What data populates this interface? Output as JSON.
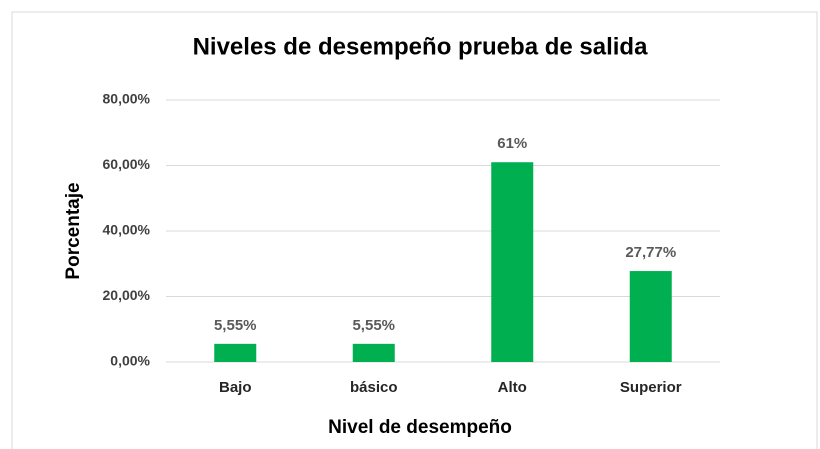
{
  "chart_data": {
    "type": "bar",
    "title": "Niveles de desempeño prueba de salida",
    "x_label": "Nivel de desempeño",
    "y_label": "Porcentaje",
    "categories": [
      "Bajo",
      "básico",
      "Alto",
      "Superior"
    ],
    "values": [
      5.55,
      5.55,
      61,
      27.77
    ],
    "value_labels": [
      "5,55%",
      "5,55%",
      "61%",
      "27,77%"
    ],
    "color": "#00b050",
    "ylim": [
      0,
      80
    ],
    "yticks": [
      {
        "value": 0,
        "label": "0,00%"
      },
      {
        "value": 20,
        "label": "20,00%"
      },
      {
        "value": 40,
        "label": "40,00%"
      },
      {
        "value": 60,
        "label": "60,00%"
      },
      {
        "value": 80,
        "label": "80,00%"
      }
    ],
    "grid": true
  }
}
